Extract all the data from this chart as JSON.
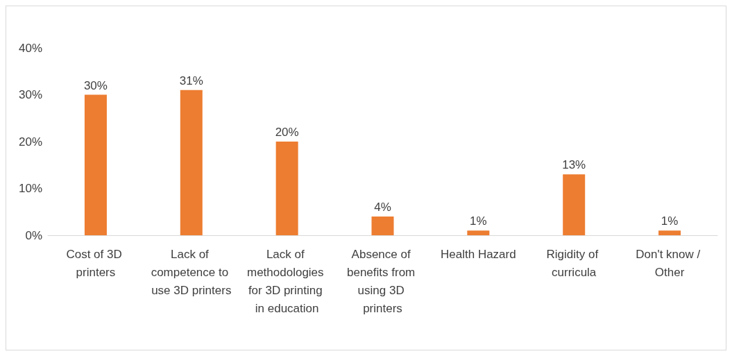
{
  "chart_data": {
    "type": "bar",
    "categories": [
      "Cost of 3D printers",
      "Lack of competence to use 3D printers",
      "Lack of methodologies for 3D printing in education",
      "Absence of benefits from using 3D printers",
      "Health Hazard",
      "Rigidity of curricula",
      "Don't know / Other"
    ],
    "values": [
      30,
      31,
      20,
      4,
      1,
      13,
      1
    ],
    "value_labels": [
      "30%",
      "31%",
      "20%",
      "4%",
      "1%",
      "13%",
      "1%"
    ],
    "color": "#ed7d31",
    "ylim": [
      0,
      40
    ],
    "yticks": [
      {
        "value": 0,
        "label": "0%"
      },
      {
        "value": 10,
        "label": "10%"
      },
      {
        "value": 20,
        "label": "20%"
      },
      {
        "value": 30,
        "label": "30%"
      },
      {
        "value": 40,
        "label": "40%"
      }
    ],
    "grid": false
  }
}
